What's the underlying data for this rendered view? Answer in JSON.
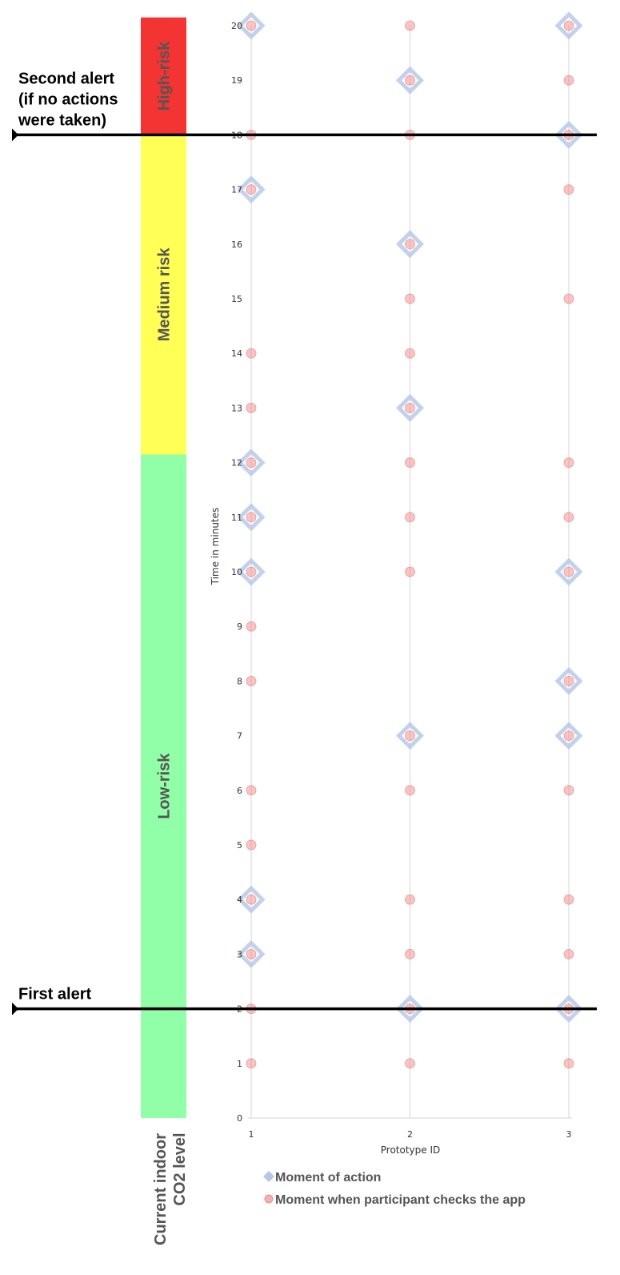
{
  "chart_data": {
    "type": "scatter",
    "xlabel": "Prototype ID",
    "ylabel": "Time in minutes",
    "x_ticks": [
      "1",
      "2",
      "3"
    ],
    "y_ticks": [
      "0",
      "1",
      "2",
      "3",
      "4",
      "5",
      "6",
      "7",
      "8",
      "9",
      "10",
      "11",
      "12",
      "13",
      "14",
      "15",
      "16",
      "17",
      "18",
      "19",
      "20"
    ],
    "xlim": [
      1,
      3
    ],
    "ylim": [
      0,
      20
    ],
    "legend_position": "bottom",
    "series": [
      {
        "name": "Moment of action",
        "marker": "diamond",
        "color": "#b4c7e7",
        "points": [
          {
            "x": 1,
            "y": 20
          },
          {
            "x": 1,
            "y": 17
          },
          {
            "x": 1,
            "y": 12
          },
          {
            "x": 1,
            "y": 11
          },
          {
            "x": 1,
            "y": 10
          },
          {
            "x": 1,
            "y": 4
          },
          {
            "x": 1,
            "y": 3
          },
          {
            "x": 2,
            "y": 19
          },
          {
            "x": 2,
            "y": 16
          },
          {
            "x": 2,
            "y": 13
          },
          {
            "x": 2,
            "y": 7
          },
          {
            "x": 2,
            "y": 2
          },
          {
            "x": 3,
            "y": 20
          },
          {
            "x": 3,
            "y": 18
          },
          {
            "x": 3,
            "y": 10
          },
          {
            "x": 3,
            "y": 8
          },
          {
            "x": 3,
            "y": 7
          },
          {
            "x": 3,
            "y": 2
          }
        ]
      },
      {
        "name": "Moment when participant checks the app",
        "marker": "circle",
        "color": "#f4a5a5",
        "points": [
          {
            "x": 1,
            "y": 20
          },
          {
            "x": 1,
            "y": 18
          },
          {
            "x": 1,
            "y": 17
          },
          {
            "x": 1,
            "y": 14
          },
          {
            "x": 1,
            "y": 13
          },
          {
            "x": 1,
            "y": 12
          },
          {
            "x": 1,
            "y": 11
          },
          {
            "x": 1,
            "y": 10
          },
          {
            "x": 1,
            "y": 9
          },
          {
            "x": 1,
            "y": 8
          },
          {
            "x": 1,
            "y": 6
          },
          {
            "x": 1,
            "y": 5
          },
          {
            "x": 1,
            "y": 4
          },
          {
            "x": 1,
            "y": 3
          },
          {
            "x": 1,
            "y": 2
          },
          {
            "x": 1,
            "y": 1
          },
          {
            "x": 2,
            "y": 20
          },
          {
            "x": 2,
            "y": 19
          },
          {
            "x": 2,
            "y": 18
          },
          {
            "x": 2,
            "y": 16
          },
          {
            "x": 2,
            "y": 15
          },
          {
            "x": 2,
            "y": 14
          },
          {
            "x": 2,
            "y": 13
          },
          {
            "x": 2,
            "y": 12
          },
          {
            "x": 2,
            "y": 11
          },
          {
            "x": 2,
            "y": 10
          },
          {
            "x": 2,
            "y": 7
          },
          {
            "x": 2,
            "y": 6
          },
          {
            "x": 2,
            "y": 4
          },
          {
            "x": 2,
            "y": 3
          },
          {
            "x": 2,
            "y": 2
          },
          {
            "x": 2,
            "y": 1
          },
          {
            "x": 3,
            "y": 20
          },
          {
            "x": 3,
            "y": 19
          },
          {
            "x": 3,
            "y": 18
          },
          {
            "x": 3,
            "y": 17
          },
          {
            "x": 3,
            "y": 15
          },
          {
            "x": 3,
            "y": 12
          },
          {
            "x": 3,
            "y": 11
          },
          {
            "x": 3,
            "y": 10
          },
          {
            "x": 3,
            "y": 8
          },
          {
            "x": 3,
            "y": 7
          },
          {
            "x": 3,
            "y": 6
          },
          {
            "x": 3,
            "y": 4
          },
          {
            "x": 3,
            "y": 3
          },
          {
            "x": 3,
            "y": 2
          },
          {
            "x": 3,
            "y": 1
          }
        ]
      }
    ],
    "risk_bands": [
      {
        "label": "Low-risk",
        "from": 0,
        "to": 12.15,
        "color": "#90ffa8"
      },
      {
        "label": "Medium risk",
        "from": 12.15,
        "to": 18,
        "color": "#ffff55"
      },
      {
        "label": "High-risk",
        "from": 18,
        "to": 20.15,
        "color": "#f43333"
      }
    ],
    "risk_axis_label": [
      "Current indoor",
      "CO2 level"
    ],
    "alerts": [
      {
        "y": 18,
        "lines": [
          "Second alert",
          "(if no actions",
          "were taken)"
        ]
      },
      {
        "y": 2,
        "lines": [
          "First alert"
        ]
      }
    ]
  }
}
